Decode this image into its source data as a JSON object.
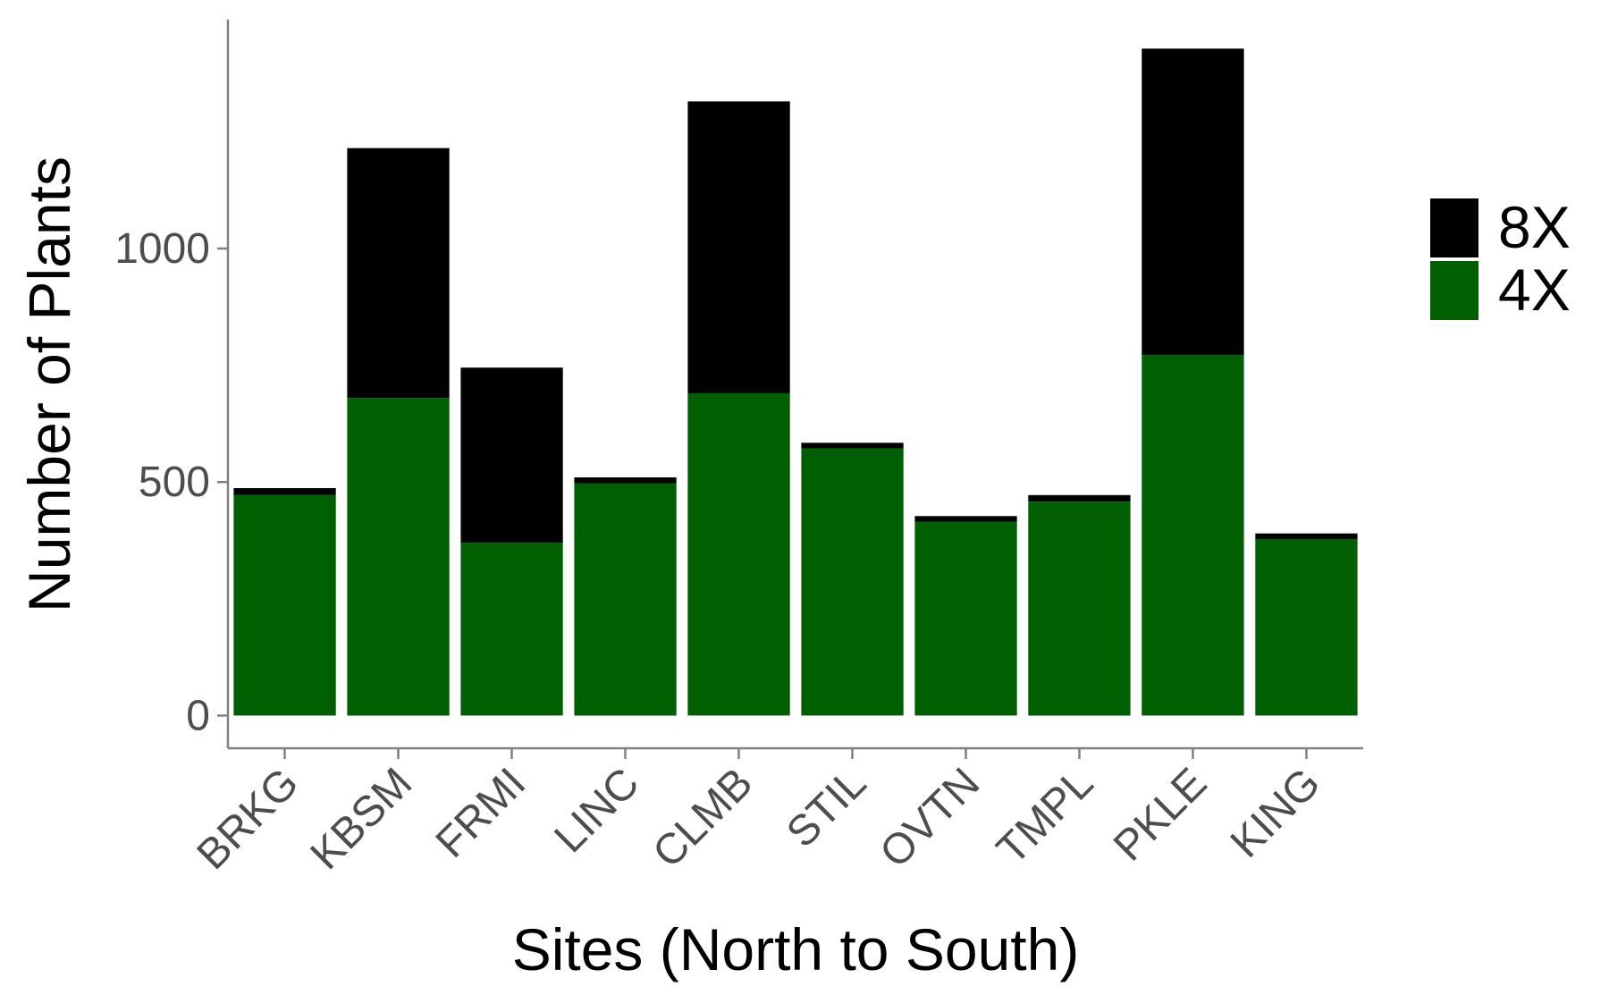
{
  "chart_data": {
    "type": "bar",
    "stacked": true,
    "categories": [
      "BRKG",
      "KBSM",
      "FRMI",
      "LINC",
      "CLMB",
      "STIL",
      "OVTN",
      "TMPL",
      "PKLE",
      "KING"
    ],
    "series": [
      {
        "name": "4X",
        "color": "#005f00",
        "values": [
          472,
          680,
          370,
          497,
          690,
          572,
          415,
          458,
          772,
          378
        ]
      },
      {
        "name": "8X",
        "color": "#000000",
        "values": [
          15,
          535,
          375,
          13,
          625,
          12,
          12,
          14,
          656,
          12
        ]
      }
    ],
    "xlabel": "Sites (North to South)",
    "ylabel": "Number of Plants",
    "yticks": [
      0,
      500,
      1000
    ],
    "ylim": [
      -70,
      1490
    ],
    "legend": {
      "position": "right",
      "order": [
        "8X",
        "4X"
      ]
    },
    "grid": false
  }
}
